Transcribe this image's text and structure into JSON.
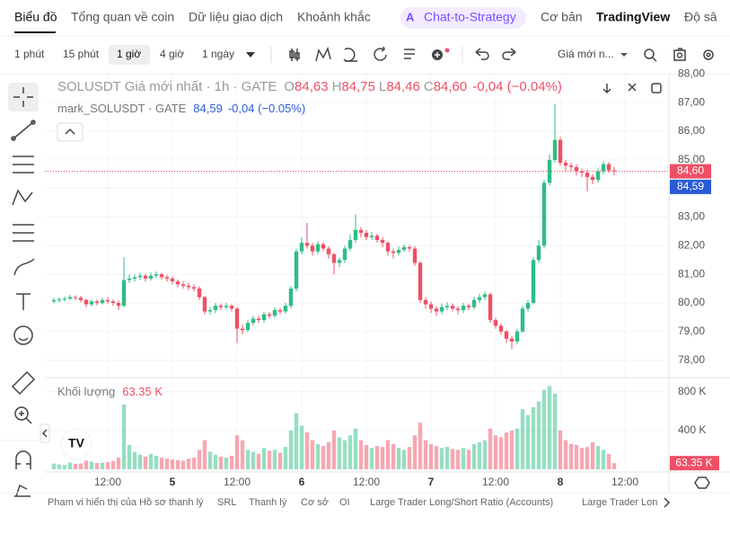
{
  "nav": {
    "tabs": [
      "Biểu đồ",
      "Tổng quan về coin",
      "Dữ liệu giao dịch",
      "Khoảnh khắc",
      "Chat-to-Strategy",
      "Cơ bản",
      "TradingView",
      "Độ sâ"
    ]
  },
  "toolbar": {
    "intervals": [
      "1 phút",
      "15 phút",
      "1 giờ",
      "4 giờ",
      "1 ngày"
    ],
    "price_source": "Giá mới n..."
  },
  "chart_data": {
    "type": "candlestick",
    "title": "SOLUSDT Giá mới nhất · 1h · GATE",
    "ohlc_legend": [
      {
        "key": "O",
        "label": "84,63"
      },
      {
        "key": "H",
        "label": "84,75"
      },
      {
        "key": "L",
        "label": "84,46"
      },
      {
        "key": "C",
        "label": "84,60"
      }
    ],
    "change_label": "-0,04 (−0.04%)",
    "mark_legend": {
      "name": "mark_SOLUSDT · GATE",
      "label": "84,59",
      "change_label": "-0,04 (−0.05%)"
    },
    "up_color": "#2ebd85",
    "down_color": "#ef4f66",
    "mark_color": "#2a5bd7",
    "categories": [
      null,
      null,
      null,
      null,
      null,
      null,
      null,
      null,
      null,
      null,
      "12:00",
      null,
      null,
      null,
      null,
      null,
      null,
      null,
      null,
      null,
      null,
      null,
      "5",
      null,
      null,
      null,
      null,
      null,
      null,
      null,
      null,
      null,
      null,
      null,
      "12:00",
      null,
      null,
      null,
      null,
      null,
      null,
      null,
      null,
      null,
      null,
      null,
      "6",
      null,
      null,
      null,
      null,
      null,
      null,
      null,
      null,
      null,
      null,
      null,
      "12:00",
      null,
      null,
      null,
      null,
      null,
      null,
      null,
      null,
      null,
      null,
      null,
      "7",
      null,
      null,
      null,
      null,
      null,
      null,
      null,
      null,
      null,
      null,
      null,
      "12:00",
      null,
      null,
      null,
      null,
      null,
      null,
      null,
      null,
      null,
      null,
      null,
      "8",
      null,
      null,
      null,
      null,
      null,
      null,
      null,
      null,
      null,
      null,
      null,
      "12:00"
    ],
    "open": [
      80.05,
      80.1,
      80.12,
      80.15,
      80.2,
      80.18,
      80.1,
      79.95,
      80.05,
      80.0,
      80.1,
      80.05,
      80.0,
      79.9,
      80.8,
      80.85,
      80.9,
      80.95,
      80.85,
      80.95,
      81.0,
      80.9,
      80.85,
      80.75,
      80.65,
      80.6,
      80.55,
      80.5,
      80.2,
      79.7,
      79.75,
      79.9,
      79.85,
      79.9,
      79.8,
      79.1,
      79.05,
      79.3,
      79.45,
      79.4,
      79.6,
      79.55,
      79.75,
      79.7,
      79.9,
      80.5,
      81.8,
      82.1,
      82.0,
      81.8,
      82.05,
      81.9,
      81.7,
      81.4,
      81.5,
      81.9,
      82.2,
      82.55,
      82.45,
      82.3,
      82.35,
      82.2,
      82.1,
      81.8,
      81.75,
      81.85,
      81.95,
      81.9,
      81.4,
      80.1,
      79.95,
      79.8,
      79.7,
      79.85,
      79.9,
      79.8,
      79.75,
      79.9,
      79.85,
      80.1,
      80.2,
      80.3,
      79.4,
      79.2,
      79.0,
      78.75,
      78.65,
      79.0,
      79.8,
      80.0,
      81.5,
      82.0,
      84.2,
      85.0,
      85.7,
      84.9,
      84.8,
      84.75,
      84.6,
      84.55,
      84.4,
      84.3,
      84.6,
      84.85,
      84.63,
      null,
      null
    ],
    "high": [
      80.18,
      80.2,
      80.22,
      80.28,
      80.26,
      80.25,
      80.15,
      80.12,
      80.12,
      80.18,
      80.2,
      80.12,
      80.08,
      81.6,
      81.0,
      81.0,
      81.05,
      81.02,
      81.05,
      81.1,
      81.05,
      80.98,
      80.92,
      80.82,
      80.75,
      80.7,
      80.65,
      80.58,
      80.25,
      79.85,
      80.0,
      79.98,
      80.0,
      79.95,
      79.85,
      79.25,
      79.4,
      79.55,
      79.55,
      79.7,
      79.68,
      79.85,
      79.82,
      80.0,
      80.6,
      81.9,
      82.3,
      82.8,
      82.1,
      82.15,
      82.12,
      81.98,
      81.75,
      81.6,
      82.0,
      82.4,
      83.1,
      82.65,
      82.55,
      82.48,
      82.42,
      82.3,
      82.15,
      81.9,
      81.98,
      82.05,
      82.02,
      81.98,
      81.45,
      80.2,
      80.05,
      79.88,
      79.98,
      80.02,
      79.98,
      79.88,
      80.0,
      79.98,
      80.22,
      80.32,
      80.4,
      80.35,
      79.48,
      79.28,
      79.05,
      78.85,
      79.1,
      79.9,
      80.1,
      81.6,
      82.2,
      84.3,
      85.2,
      86.95,
      85.8,
      85.0,
      84.9,
      84.85,
      84.7,
      84.65,
      84.5,
      84.7,
      84.95,
      84.92,
      84.75,
      null,
      null
    ],
    "low": [
      79.98,
      80.02,
      80.05,
      80.1,
      80.1,
      80.02,
      79.85,
      79.88,
      79.92,
      79.95,
      79.98,
      79.9,
      79.75,
      79.85,
      80.7,
      80.75,
      80.8,
      80.75,
      80.78,
      80.88,
      80.82,
      80.75,
      80.65,
      80.55,
      80.5,
      80.45,
      80.4,
      80.1,
      79.6,
      79.6,
      79.65,
      79.75,
      79.78,
      79.7,
      78.6,
      78.9,
      78.98,
      79.2,
      79.3,
      79.32,
      79.45,
      79.48,
      79.6,
      79.62,
      79.8,
      80.4,
      81.7,
      81.9,
      81.65,
      81.7,
      81.8,
      81.55,
      81.0,
      81.25,
      81.4,
      81.8,
      82.1,
      82.3,
      82.2,
      82.2,
      82.1,
      81.95,
      81.65,
      81.55,
      81.65,
      81.78,
      81.78,
      81.3,
      80.0,
      79.8,
      79.65,
      79.55,
      79.6,
      79.75,
      79.7,
      79.6,
      79.65,
      79.75,
      79.78,
      80.0,
      80.1,
      79.3,
      79.1,
      78.9,
      78.6,
      78.4,
      78.55,
      78.95,
      79.7,
      79.95,
      81.4,
      81.9,
      84.1,
      84.9,
      84.8,
      84.6,
      84.6,
      84.45,
      84.4,
      83.9,
      84.15,
      84.2,
      84.5,
      84.55,
      84.46,
      null,
      null
    ],
    "close": [
      80.1,
      80.12,
      80.15,
      80.2,
      80.18,
      80.1,
      79.95,
      80.05,
      80.0,
      80.1,
      80.05,
      80.0,
      79.9,
      80.8,
      80.85,
      80.9,
      80.95,
      80.85,
      80.95,
      81.0,
      80.9,
      80.85,
      80.75,
      80.65,
      80.6,
      80.55,
      80.5,
      80.2,
      79.7,
      79.75,
      79.9,
      79.85,
      79.9,
      79.8,
      79.1,
      79.05,
      79.3,
      79.45,
      79.4,
      79.6,
      79.55,
      79.75,
      79.7,
      79.9,
      80.5,
      81.8,
      82.1,
      82.0,
      81.8,
      82.05,
      81.9,
      81.7,
      81.4,
      81.5,
      81.9,
      82.2,
      82.55,
      82.45,
      82.3,
      82.35,
      82.2,
      82.1,
      81.8,
      81.75,
      81.85,
      81.95,
      81.9,
      81.4,
      80.1,
      79.95,
      79.8,
      79.7,
      79.85,
      79.9,
      79.8,
      79.75,
      79.9,
      79.85,
      80.1,
      80.2,
      80.3,
      79.4,
      79.2,
      79.0,
      78.75,
      78.65,
      79.0,
      79.8,
      80.0,
      81.5,
      82.0,
      84.2,
      85.0,
      85.7,
      84.9,
      84.8,
      84.75,
      84.6,
      84.55,
      84.4,
      84.3,
      84.6,
      84.85,
      84.63,
      84.6,
      null,
      null
    ],
    "ylim": [
      77.5,
      88.2
    ],
    "yticks": [
      {
        "value": 78,
        "label": "78,00"
      },
      {
        "value": 79,
        "label": "79,00"
      },
      {
        "value": 80,
        "label": "80,00"
      },
      {
        "value": 81,
        "label": "81,00"
      },
      {
        "value": 82,
        "label": "82,00"
      },
      {
        "value": 83,
        "label": "83,00"
      },
      {
        "value": 84,
        "label": "84,00"
      },
      {
        "value": 85,
        "label": "85,00"
      },
      {
        "value": 86,
        "label": "86,00"
      },
      {
        "value": 87,
        "label": "87,00"
      },
      {
        "value": 88,
        "label": "88,00"
      }
    ],
    "last_price": {
      "value": 84.6,
      "label": "84,60"
    },
    "mark_price": {
      "value": 84.59,
      "label": "84,59"
    },
    "volume_title": "Khối lượng",
    "volume_last_label": "63.35 K",
    "volume": [
      60000,
      50000,
      45000,
      70000,
      55000,
      60000,
      90000,
      80000,
      65000,
      70000,
      75000,
      85000,
      120000,
      670000,
      250000,
      180000,
      150000,
      130000,
      160000,
      140000,
      120000,
      110000,
      100000,
      95000,
      90000,
      110000,
      120000,
      200000,
      300000,
      180000,
      150000,
      130000,
      120000,
      140000,
      350000,
      300000,
      200000,
      180000,
      160000,
      220000,
      190000,
      200000,
      170000,
      230000,
      400000,
      580000,
      450000,
      380000,
      300000,
      260000,
      240000,
      280000,
      400000,
      330000,
      300000,
      350000,
      420000,
      300000,
      250000,
      220000,
      240000,
      230000,
      300000,
      260000,
      220000,
      200000,
      230000,
      350000,
      480000,
      300000,
      260000,
      240000,
      220000,
      230000,
      210000,
      200000,
      220000,
      200000,
      260000,
      280000,
      300000,
      420000,
      350000,
      330000,
      380000,
      400000,
      420000,
      620000,
      560000,
      640000,
      700000,
      820000,
      860000,
      780000,
      400000,
      300000,
      260000,
      250000,
      220000,
      230000,
      280000,
      240000,
      200000,
      160000,
      63350,
      null,
      null
    ],
    "volume_ylim": [
      0,
      900000
    ],
    "volume_ticks": [
      {
        "value": 400000,
        "label": "400 K"
      },
      {
        "value": 800000,
        "label": "800 K"
      }
    ],
    "grid": true
  },
  "bottom_tabs": [
    "Phạm vi hiển thị của Hồ sơ thanh lý",
    "SRL",
    "Thanh lý",
    "Cơ sở",
    "OI",
    "Large Trader Long/Short Ratio (Accounts)",
    "Large Trader Lon"
  ]
}
